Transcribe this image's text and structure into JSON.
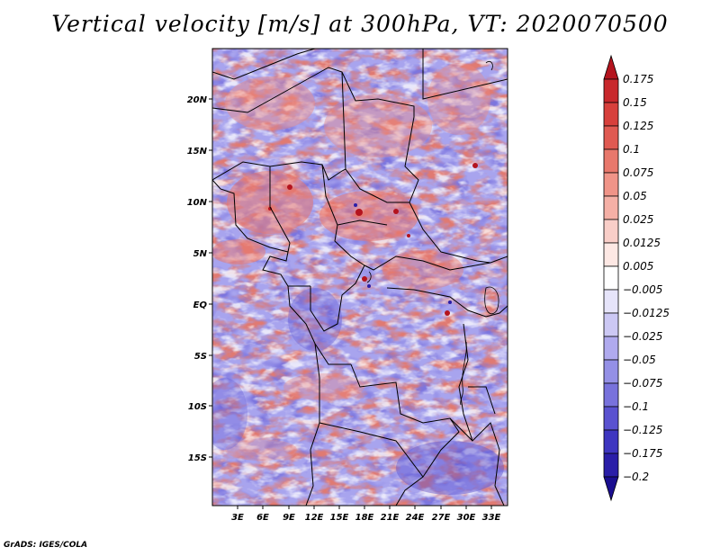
{
  "title": "Vertical velocity [m/s] at 300hPa, VT: 2020070500",
  "footer": "GrADS: IGES/COLA",
  "map": {
    "lat_labels": [
      "20N",
      "15N",
      "10N",
      "5N",
      "EQ",
      "5S",
      "10S",
      "15S"
    ],
    "lon_labels": [
      "3E",
      "6E",
      "9E",
      "12E",
      "15E",
      "18E",
      "21E",
      "24E",
      "27E",
      "30E",
      "33E"
    ]
  },
  "colorbar": {
    "labels": [
      "0.175",
      "0.15",
      "0.125",
      "0.1",
      "0.075",
      "0.05",
      "0.025",
      "0.0125",
      "0.005",
      "−0.005",
      "−0.0125",
      "−0.025",
      "−0.05",
      "−0.075",
      "−0.1",
      "−0.125",
      "−0.175",
      "−0.2"
    ],
    "colors": [
      "#b4141e",
      "#c8282c",
      "#d7403c",
      "#e05a52",
      "#e8786c",
      "#f09488",
      "#f5b0a6",
      "#f9cec8",
      "#fde8e4",
      "#ffffff",
      "#e6e4fa",
      "#ccc8f4",
      "#b0aaee",
      "#9490e6",
      "#7872dc",
      "#5a52d0",
      "#3e36c0",
      "#2a1ea8",
      "#1a0e90"
    ]
  }
}
